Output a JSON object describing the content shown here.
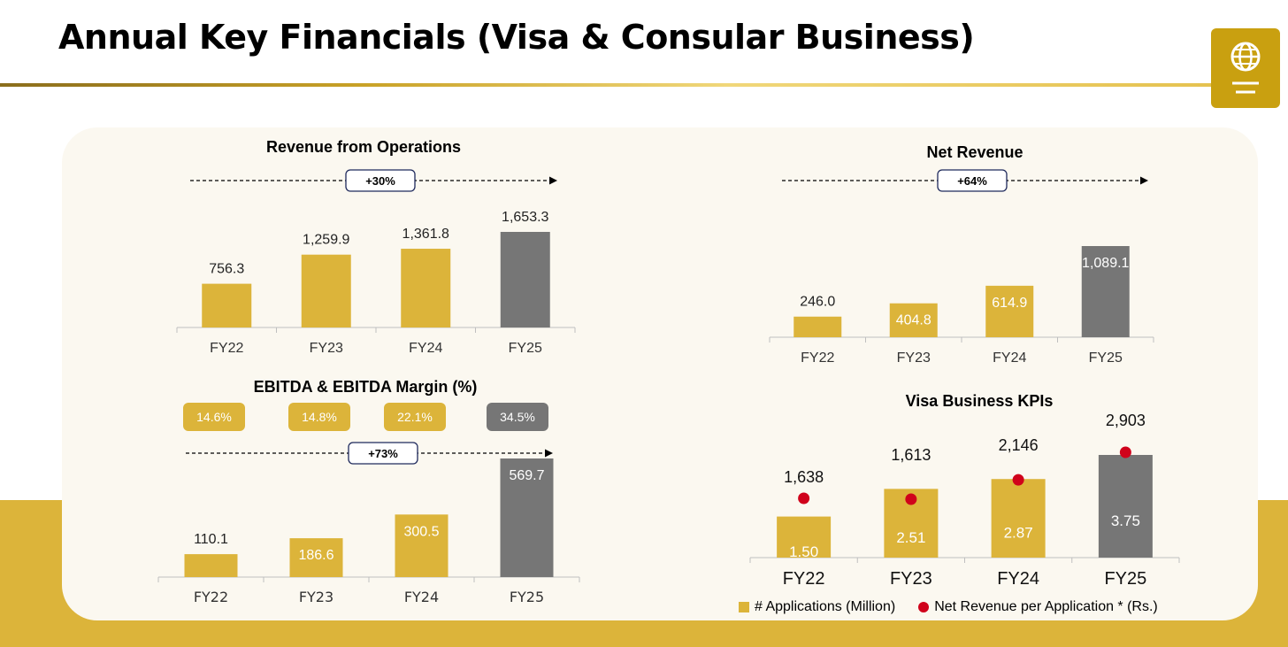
{
  "header": {
    "title": "Annual Key Financials (Visa & Consular Business)"
  },
  "logo": {
    "icon": "globe-document-icon"
  },
  "colors": {
    "gold": "#dcb43a",
    "grey": "#767676",
    "red": "#d0021b",
    "navy": "#1f2a5c"
  },
  "legend": {
    "applications": "# Applications (Million)",
    "net_rev_per_app": "Net Revenue per Application * (Rs.)"
  },
  "chart_data": [
    {
      "id": "rev",
      "type": "bar",
      "title": "Revenue from Operations",
      "growth": "+30%",
      "categories": [
        "FY22",
        "FY23",
        "FY24",
        "FY25"
      ],
      "values": [
        756.3,
        1259.9,
        1361.8,
        1653.3
      ],
      "labels": [
        "756.3",
        "1,259.9",
        "1,361.8",
        "1,653.3"
      ]
    },
    {
      "id": "netrev",
      "type": "bar",
      "title": "Net Revenue",
      "growth": "+64%",
      "categories": [
        "FY22",
        "FY23",
        "FY24",
        "FY25"
      ],
      "values": [
        246.0,
        404.8,
        614.9,
        1089.1
      ],
      "labels": [
        "246.0",
        "404.8",
        "614.9",
        "1,089.1"
      ]
    },
    {
      "id": "ebitda",
      "type": "bar",
      "title": "EBITDA & EBITDA Margin (%)",
      "growth": "+73%",
      "categories": [
        "FY22",
        "FY23",
        "FY24",
        "FY25"
      ],
      "values": [
        110.1,
        186.6,
        300.5,
        569.7
      ],
      "labels": [
        "110.1",
        "186.6",
        "300.5",
        "569.7"
      ],
      "margins": [
        "14.6%",
        "14.8%",
        "22.1%",
        "34.5%"
      ]
    },
    {
      "id": "kpi",
      "type": "bar",
      "title": "Visa Business KPIs",
      "categories": [
        "FY22",
        "FY23",
        "FY24",
        "FY25"
      ],
      "series": [
        {
          "name": "# Applications (Million)",
          "values": [
            1.5,
            2.51,
            2.87,
            3.75
          ],
          "labels": [
            "1.50",
            "2.51",
            "2.87",
            "3.75"
          ]
        },
        {
          "name": "Net Revenue per Application * (Rs.)",
          "values": [
            1638,
            1613,
            2146,
            2903
          ],
          "labels": [
            "1,638",
            "1,613",
            "2,146",
            "2,903"
          ]
        }
      ]
    }
  ]
}
